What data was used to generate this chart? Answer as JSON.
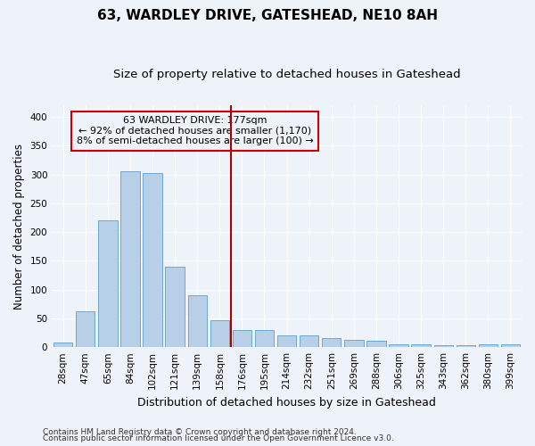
{
  "title": "63, WARDLEY DRIVE, GATESHEAD, NE10 8AH",
  "subtitle": "Size of property relative to detached houses in Gateshead",
  "xlabel": "Distribution of detached houses by size in Gateshead",
  "ylabel": "Number of detached properties",
  "categories": [
    "28sqm",
    "47sqm",
    "65sqm",
    "84sqm",
    "102sqm",
    "121sqm",
    "139sqm",
    "158sqm",
    "176sqm",
    "195sqm",
    "214sqm",
    "232sqm",
    "251sqm",
    "269sqm",
    "288sqm",
    "306sqm",
    "325sqm",
    "343sqm",
    "362sqm",
    "380sqm",
    "399sqm"
  ],
  "values": [
    8,
    63,
    220,
    305,
    303,
    140,
    90,
    47,
    30,
    30,
    20,
    20,
    15,
    13,
    11,
    5,
    5,
    3,
    3,
    5,
    5
  ],
  "bar_color": "#b8cfe8",
  "bar_edge_color": "#6fa8d4",
  "vline_index": 8,
  "ylim": [
    0,
    420
  ],
  "yticks": [
    0,
    50,
    100,
    150,
    200,
    250,
    300,
    350,
    400
  ],
  "annotation_title": "63 WARDLEY DRIVE: 177sqm",
  "annotation_line1": "← 92% of detached houses are smaller (1,170)",
  "annotation_line2": "8% of semi-detached houses are larger (100) →",
  "annotation_box_color": "#cc0000",
  "vline_color": "#aa0000",
  "bg_color": "#eef2f9",
  "grid_color": "#ffffff",
  "footer1": "Contains HM Land Registry data © Crown copyright and database right 2024.",
  "footer2": "Contains public sector information licensed under the Open Government Licence v3.0.",
  "title_fontsize": 11,
  "subtitle_fontsize": 9.5,
  "xlabel_fontsize": 9,
  "ylabel_fontsize": 8.5,
  "tick_fontsize": 7.5,
  "annotation_fontsize": 8,
  "footer_fontsize": 6.5
}
